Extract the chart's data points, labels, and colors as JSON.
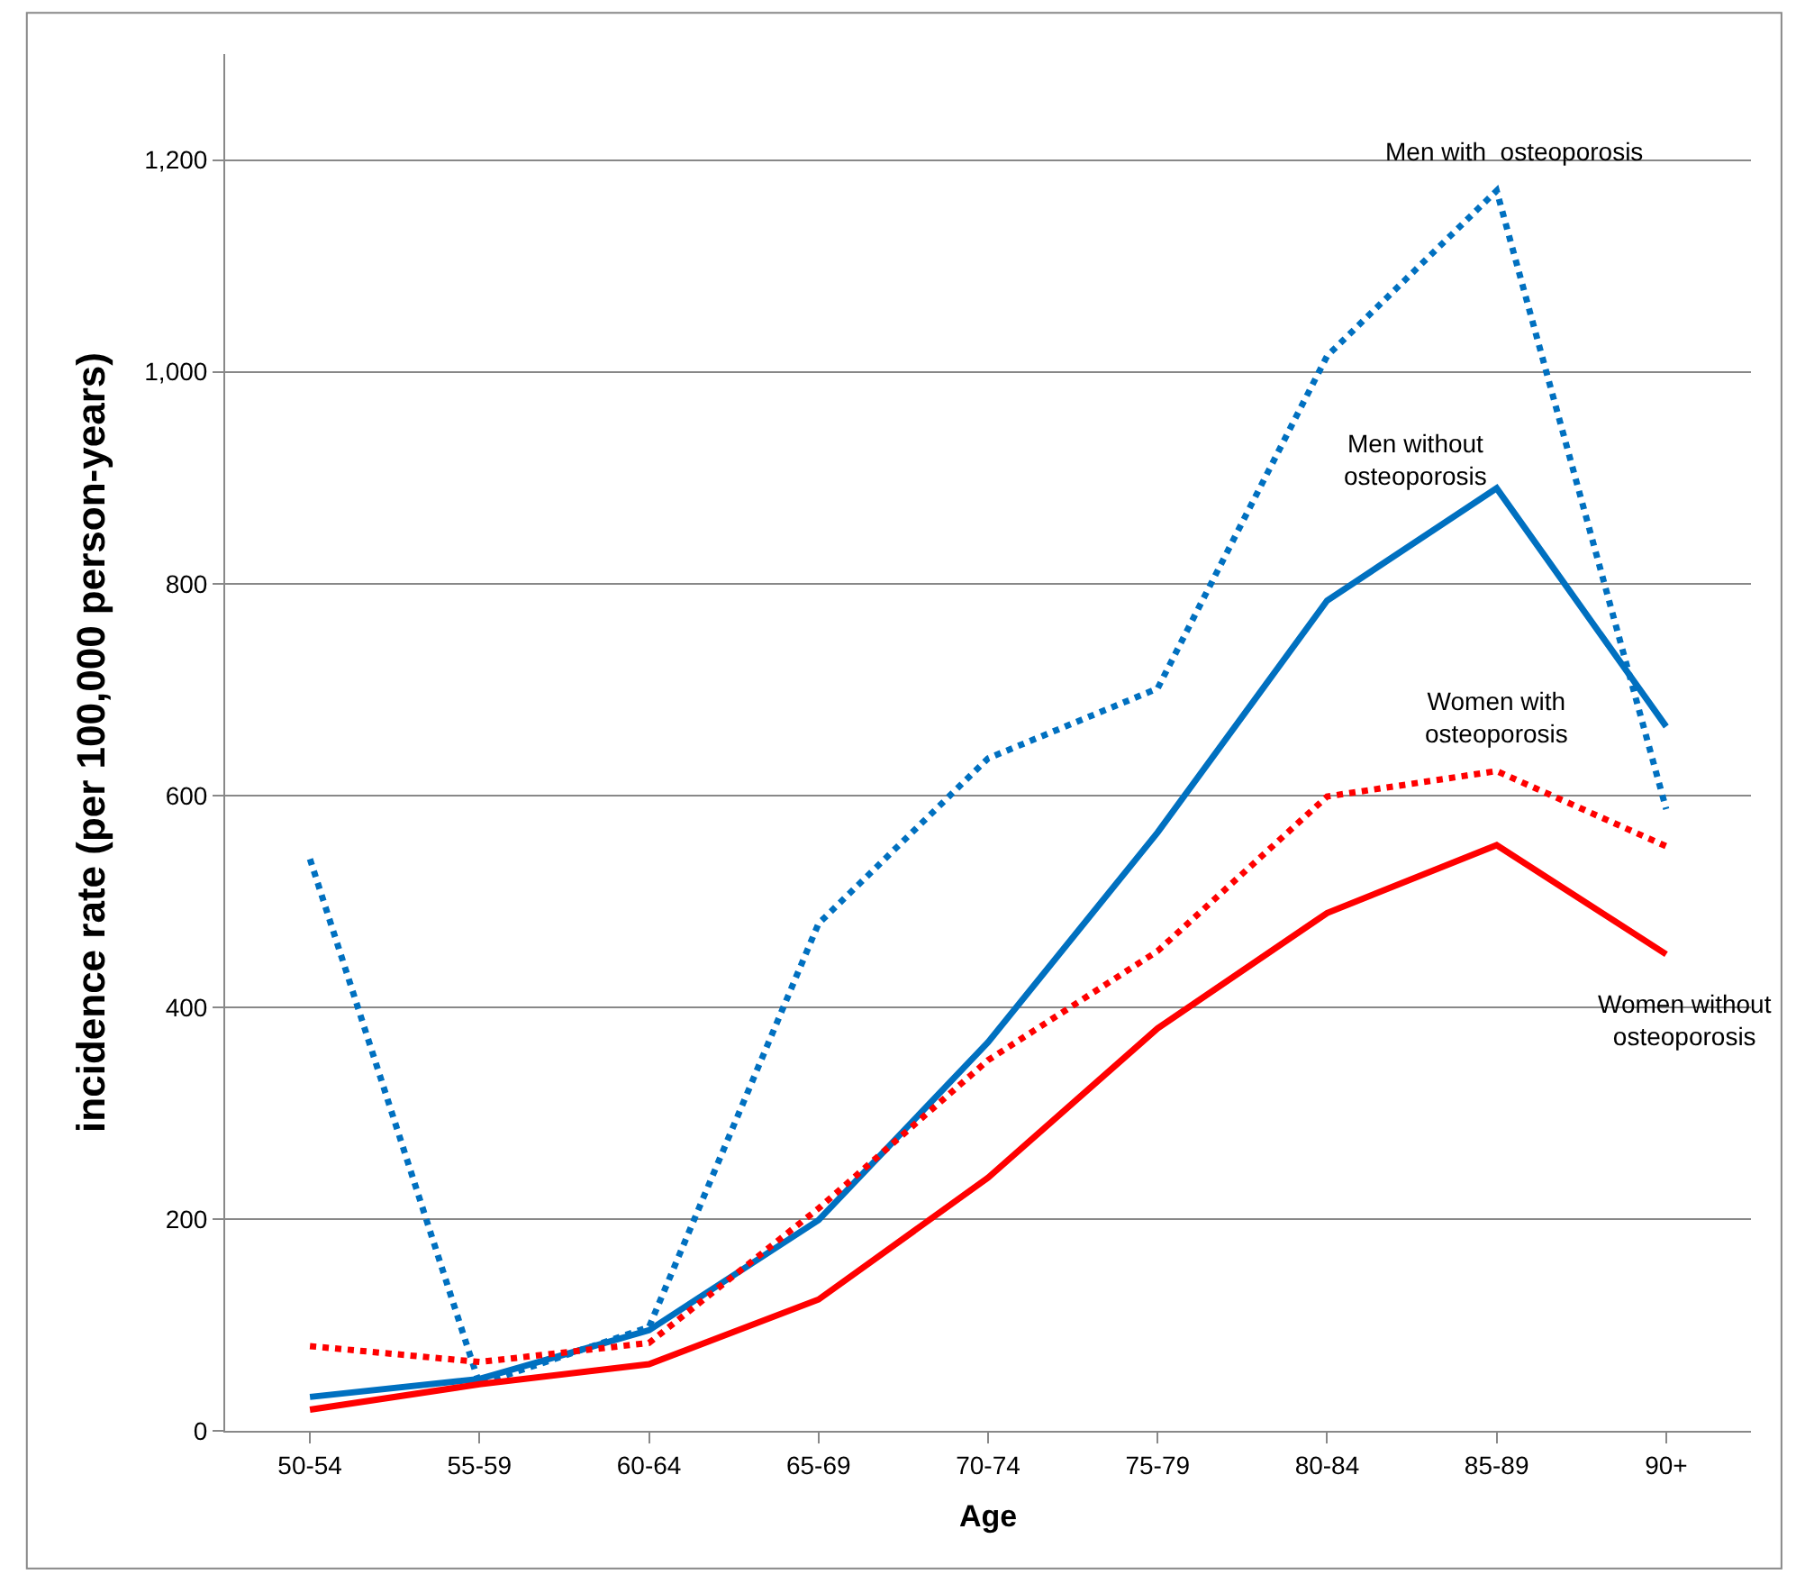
{
  "chart_data": {
    "type": "line",
    "xlabel": "Age",
    "ylabel": "incidence rate (per 100,000 person-years)",
    "categories": [
      "50-54",
      "55-59",
      "60-64",
      "65-69",
      "70-74",
      "75-79",
      "80-84",
      "85-89",
      "90+"
    ],
    "series": [
      {
        "name": "Men with  osteoporosis",
        "color": "#0070c0",
        "line_style": "dotted",
        "values": [
          540,
          44,
          98,
          479,
          635,
          701,
          1015,
          1171,
          587
        ]
      },
      {
        "name": "Men without\nosteoporosis",
        "color": "#0070c0",
        "line_style": "solid",
        "values": [
          32,
          49,
          95,
          199,
          367,
          565,
          784,
          890,
          665
        ]
      },
      {
        "name": "Women with\nosteoporosis",
        "color": "#ff0000",
        "line_style": "dotted",
        "values": [
          80,
          65,
          83,
          210,
          350,
          453,
          599,
          623,
          552
        ]
      },
      {
        "name": "Women without\nosteoporosis",
        "color": "#ff0000",
        "line_style": "solid",
        "values": [
          20,
          44,
          63,
          124,
          239,
          380,
          489,
          553,
          450
        ]
      }
    ],
    "ylim": [
      0,
      1300
    ],
    "yticks": [
      0,
      {
        "value": 200,
        "label": "200"
      },
      {
        "value": 400,
        "label": "400"
      },
      {
        "value": 600,
        "label": "600"
      },
      {
        "value": 800,
        "label": "800"
      },
      {
        "value": 1000,
        "label": "1,000"
      },
      {
        "value": 1200,
        "label": "1,200"
      }
    ],
    "grid": "y",
    "legend": false,
    "marker": "none"
  }
}
